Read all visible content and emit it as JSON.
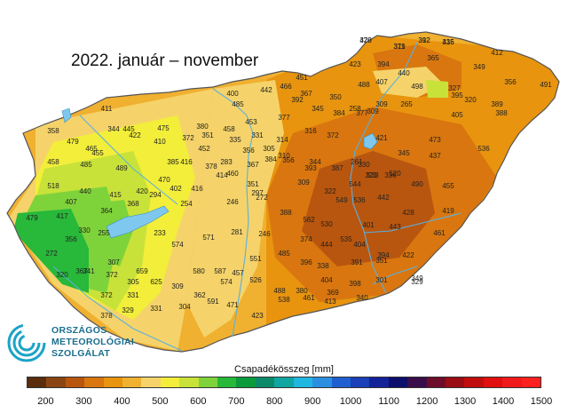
{
  "title": "2022. január – november",
  "logo": {
    "line1": "ORSZÁGOS",
    "line2": "METEOROLÓGIAI",
    "line3": "SZOLGÁLAT"
  },
  "legend": {
    "title": "Csapadékösszeg [mm]",
    "tick_labels": [
      "200",
      "300",
      "400",
      "500",
      "600",
      "700",
      "800",
      "900",
      "1000",
      "1100",
      "1200",
      "1300",
      "1400",
      "1500"
    ],
    "colors": [
      "#5a2d0c",
      "#8b4513",
      "#b8560f",
      "#d9760f",
      "#e8940f",
      "#f0b030",
      "#f5d36a",
      "#f2ee3a",
      "#c8e23a",
      "#7fd33a",
      "#28b83a",
      "#0b9a3c",
      "#0b8a6a",
      "#0fa5a0",
      "#1fb7e0",
      "#2b8fe0",
      "#1f5fd0",
      "#1a3fb8",
      "#14229a",
      "#0d0d6e",
      "#3a0d4a",
      "#6e0d2a",
      "#9a0d14",
      "#c10d0d",
      "#e01010",
      "#f01a1a",
      "#ff2020"
    ]
  },
  "map": {
    "region_colors": {
      "driest": "#b8560f",
      "dry": "#d9760f",
      "medium_dry": "#e8940f",
      "medium": "#f0b030",
      "light": "#f5d36a",
      "yellow": "#f2ee3a",
      "yellow_green": "#c8e23a",
      "green": "#7fd33a",
      "dark_green": "#28b83a",
      "river": "#5ab0e0",
      "lake": "#7ec8f0"
    },
    "station_values": [
      "478",
      "311",
      "392",
      "336",
      "423",
      "394",
      "365",
      "412",
      "451",
      "488",
      "407",
      "440",
      "498",
      "395",
      "349",
      "356",
      "491",
      "400",
      "485",
      "442",
      "466",
      "367",
      "350",
      "258",
      "309",
      "265",
      "327",
      "320",
      "388",
      "411",
      "445",
      "475",
      "380",
      "458",
      "453",
      "377",
      "392",
      "345",
      "384",
      "377",
      "309",
      "405",
      "389",
      "358",
      "479",
      "344",
      "465",
      "422",
      "410",
      "372",
      "351",
      "335",
      "331",
      "314",
      "316",
      "372",
      "421",
      "473",
      "455",
      "385",
      "452",
      "283",
      "356",
      "305",
      "356",
      "344",
      "330",
      "345",
      "437",
      "536",
      "458",
      "485",
      "489",
      "470",
      "416",
      "378",
      "460",
      "367",
      "384",
      "310",
      "393",
      "387",
      "261",
      "323",
      "336",
      "490",
      "455",
      "518",
      "440",
      "415",
      "420",
      "402",
      "416",
      "414",
      "351",
      "297",
      "309",
      "322",
      "544",
      "533",
      "520",
      "407",
      "364",
      "368",
      "294",
      "254",
      "246",
      "272",
      "388",
      "562",
      "549",
      "536",
      "442",
      "428",
      "479",
      "417",
      "330",
      "255",
      "233",
      "281",
      "246",
      "374",
      "530",
      "535",
      "401",
      "443",
      "461",
      "272",
      "356",
      "367",
      "307",
      "659",
      "574",
      "571",
      "551",
      "485",
      "444",
      "404",
      "394",
      "422",
      "419",
      "320",
      "341",
      "372",
      "305",
      "625",
      "580",
      "587",
      "457",
      "396",
      "338",
      "391",
      "351",
      "329",
      "372",
      "331",
      "309",
      "362",
      "574",
      "526",
      "488",
      "380",
      "404",
      "369",
      "398",
      "301",
      "349",
      "378",
      "329",
      "331",
      "304",
      "591",
      "471",
      "423",
      "538",
      "461",
      "413",
      "340",
      "320",
      "379",
      "312",
      "415"
    ]
  }
}
